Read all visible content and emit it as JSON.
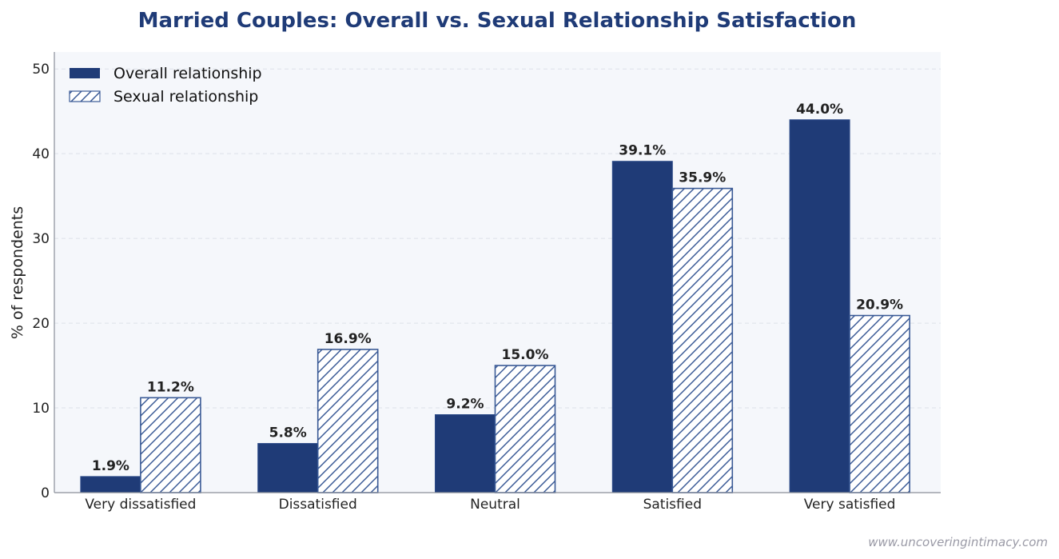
{
  "chart_data": {
    "type": "bar",
    "title": "Married Couples: Overall vs. Sexual Relationship Satisfaction",
    "xlabel": "",
    "ylabel": "% of respondents",
    "ylim": [
      0,
      52
    ],
    "yticks": [
      0,
      10,
      20,
      30,
      40,
      50
    ],
    "grid": true,
    "legend_position": "top-left",
    "categories": [
      "Very dissatisfied",
      "Dissatisfied",
      "Neutral",
      "Satisfied",
      "Very satisfied"
    ],
    "series": [
      {
        "name": "Overall relationship",
        "values": [
          1.9,
          5.8,
          9.2,
          39.1,
          44.0
        ],
        "labels": [
          "1.9%",
          "5.8%",
          "9.2%",
          "39.1%",
          "44.0%"
        ],
        "style": "solid",
        "color": "#1f3b77"
      },
      {
        "name": "Sexual relationship",
        "values": [
          11.2,
          16.9,
          15.0,
          35.9,
          20.9
        ],
        "labels": [
          "11.2%",
          "16.9%",
          "15.0%",
          "35.9%",
          "20.9%"
        ],
        "style": "hatched",
        "color": "#3a5a96"
      }
    ]
  },
  "watermark": "www.uncoveringintimacy.com",
  "colors": {
    "plot_background": "#f5f7fb",
    "title": "#1f3b77",
    "grid": "#dde1ea",
    "axis": "#8a8f99"
  }
}
